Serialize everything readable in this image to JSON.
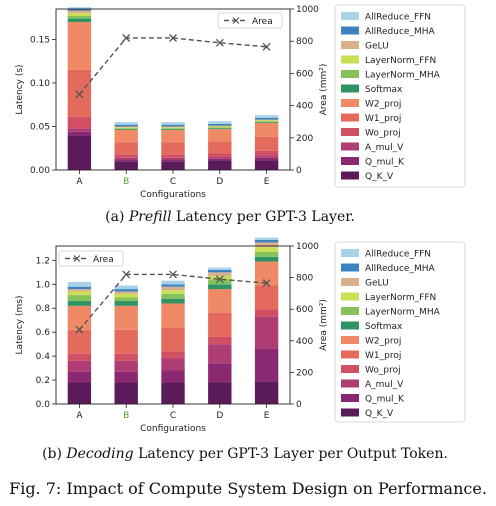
{
  "chart_data": [
    {
      "type": "bar",
      "stacked": true,
      "panel": "a",
      "categories": [
        "A",
        "B",
        "C",
        "D",
        "E"
      ],
      "category_colors": [
        "#222222",
        "#55a630",
        "#222222",
        "#222222",
        "#222222"
      ],
      "xlabel": "Configurations",
      "ylabel": "Latency (s)",
      "ylim": [
        0,
        0.185
      ],
      "yticks": [
        "0.00",
        "0.05",
        "0.10",
        "0.15"
      ],
      "ytick_values": [
        0,
        0.05,
        0.1,
        0.15
      ],
      "y2label": "Area (mm²)",
      "y2lim": [
        0,
        1000
      ],
      "y2ticks": [
        "0",
        "200",
        "400",
        "600",
        "800",
        "1000"
      ],
      "y2tick_values": [
        0,
        200,
        400,
        600,
        800,
        1000
      ],
      "legend_position": "right",
      "area_legend": "Area",
      "area_legend_position": "top-center",
      "area_series": {
        "name": "Area",
        "values": [
          470,
          820,
          820,
          790,
          765
        ]
      },
      "series": [
        {
          "name": "Q_K_V",
          "values": [
            0.04,
            0.01,
            0.01,
            0.011,
            0.011
          ]
        },
        {
          "name": "Q_mul_K",
          "values": [
            0.004,
            0.002,
            0.002,
            0.002,
            0.003
          ]
        },
        {
          "name": "A_mul_V",
          "values": [
            0.004,
            0.002,
            0.002,
            0.002,
            0.003
          ]
        },
        {
          "name": "Wo_proj",
          "values": [
            0.013,
            0.004,
            0.004,
            0.004,
            0.005
          ]
        },
        {
          "name": "W1_proj",
          "values": [
            0.054,
            0.014,
            0.014,
            0.014,
            0.016
          ]
        },
        {
          "name": "W2_proj",
          "values": [
            0.055,
            0.014,
            0.014,
            0.014,
            0.016
          ]
        },
        {
          "name": "Softmax",
          "values": [
            0.004,
            0.001,
            0.001,
            0.001,
            0.001
          ]
        },
        {
          "name": "LayerNorm_MHA",
          "values": [
            0.003,
            0.001,
            0.001,
            0.001,
            0.001
          ]
        },
        {
          "name": "LayerNorm_FFN",
          "values": [
            0.003,
            0.001,
            0.001,
            0.001,
            0.001
          ]
        },
        {
          "name": "GeLU",
          "values": [
            0.003,
            0.001,
            0.001,
            0.001,
            0.001
          ]
        },
        {
          "name": "AllReduce_MHA",
          "values": [
            0.002,
            0.002,
            0.002,
            0.002,
            0.002
          ]
        },
        {
          "name": "AllReduce_FFN",
          "values": [
            0.002,
            0.003,
            0.003,
            0.003,
            0.003
          ]
        }
      ]
    },
    {
      "type": "bar",
      "stacked": true,
      "panel": "b",
      "categories": [
        "A",
        "B",
        "C",
        "D",
        "E"
      ],
      "category_colors": [
        "#222222",
        "#55a630",
        "#222222",
        "#222222",
        "#222222"
      ],
      "xlabel": "Configurations",
      "ylabel": "Latency (ms)",
      "ylim": [
        0,
        1.32
      ],
      "yticks": [
        "0.0",
        "0.2",
        "0.4",
        "0.6",
        "0.8",
        "1.0",
        "1.2"
      ],
      "ytick_values": [
        0,
        0.2,
        0.4,
        0.6,
        0.8,
        1.0,
        1.2
      ],
      "y2label": "Area (mm²)",
      "y2lim": [
        0,
        1000
      ],
      "y2ticks": [
        "0",
        "200",
        "400",
        "600",
        "800",
        "1000"
      ],
      "y2tick_values": [
        0,
        200,
        400,
        600,
        800,
        1000
      ],
      "legend_position": "right",
      "area_legend": "Area",
      "area_legend_position": "top-left",
      "area_series": {
        "name": "Area",
        "values": [
          470,
          820,
          820,
          790,
          765
        ]
      },
      "series": [
        {
          "name": "Q_K_V",
          "values": [
            0.18,
            0.18,
            0.18,
            0.18,
            0.19
          ]
        },
        {
          "name": "Q_mul_K",
          "values": [
            0.09,
            0.09,
            0.1,
            0.16,
            0.27
          ]
        },
        {
          "name": "A_mul_V",
          "values": [
            0.09,
            0.09,
            0.1,
            0.16,
            0.27
          ]
        },
        {
          "name": "Wo_proj",
          "values": [
            0.06,
            0.06,
            0.06,
            0.06,
            0.06
          ]
        },
        {
          "name": "W1_proj",
          "values": [
            0.2,
            0.2,
            0.2,
            0.2,
            0.2
          ]
        },
        {
          "name": "W2_proj",
          "values": [
            0.2,
            0.2,
            0.2,
            0.2,
            0.2
          ]
        },
        {
          "name": "Softmax",
          "values": [
            0.04,
            0.04,
            0.04,
            0.04,
            0.04
          ]
        },
        {
          "name": "LayerNorm_MHA",
          "values": [
            0.05,
            0.03,
            0.04,
            0.04,
            0.04
          ]
        },
        {
          "name": "LayerNorm_FFN",
          "values": [
            0.03,
            0.03,
            0.03,
            0.03,
            0.04
          ]
        },
        {
          "name": "GeLU",
          "values": [
            0.02,
            0.02,
            0.03,
            0.03,
            0.04
          ]
        },
        {
          "name": "AllReduce_MHA",
          "values": [
            0.02,
            0.02,
            0.02,
            0.02,
            0.02
          ]
        },
        {
          "name": "AllReduce_FFN",
          "values": [
            0.04,
            0.03,
            0.03,
            0.02,
            0.02
          ]
        }
      ]
    }
  ],
  "colors": {
    "Q_K_V": "#5b1a5a",
    "Q_mul_K": "#8a2872",
    "A_mul_V": "#ad3d73",
    "Wo_proj": "#d04f63",
    "W1_proj": "#e46a5d",
    "W2_proj": "#f08a66",
    "Softmax": "#2f9363",
    "LayerNorm_MHA": "#86c25c",
    "LayerNorm_FFN": "#c9df55",
    "GeLU": "#d8b08c",
    "AllReduce_MHA": "#3a83c0",
    "AllReduce_FFN": "#a8d1ea",
    "area_line": "#555555"
  },
  "legend_order": [
    "AllReduce_FFN",
    "AllReduce_MHA",
    "GeLU",
    "LayerNorm_FFN",
    "LayerNorm_MHA",
    "Softmax",
    "W2_proj",
    "W1_proj",
    "Wo_proj",
    "A_mul_V",
    "Q_mul_K",
    "Q_K_V"
  ],
  "captions": {
    "a_prefix": "(a) ",
    "a_italic": "Prefill",
    "a_rest": " Latency per GPT-3 Layer.",
    "b_prefix": "(b) ",
    "b_italic": "Decoding",
    "b_rest": " Latency per GPT-3 Layer per Output Token.",
    "figure": "Fig. 7: Impact of Compute System Design on Performance."
  }
}
